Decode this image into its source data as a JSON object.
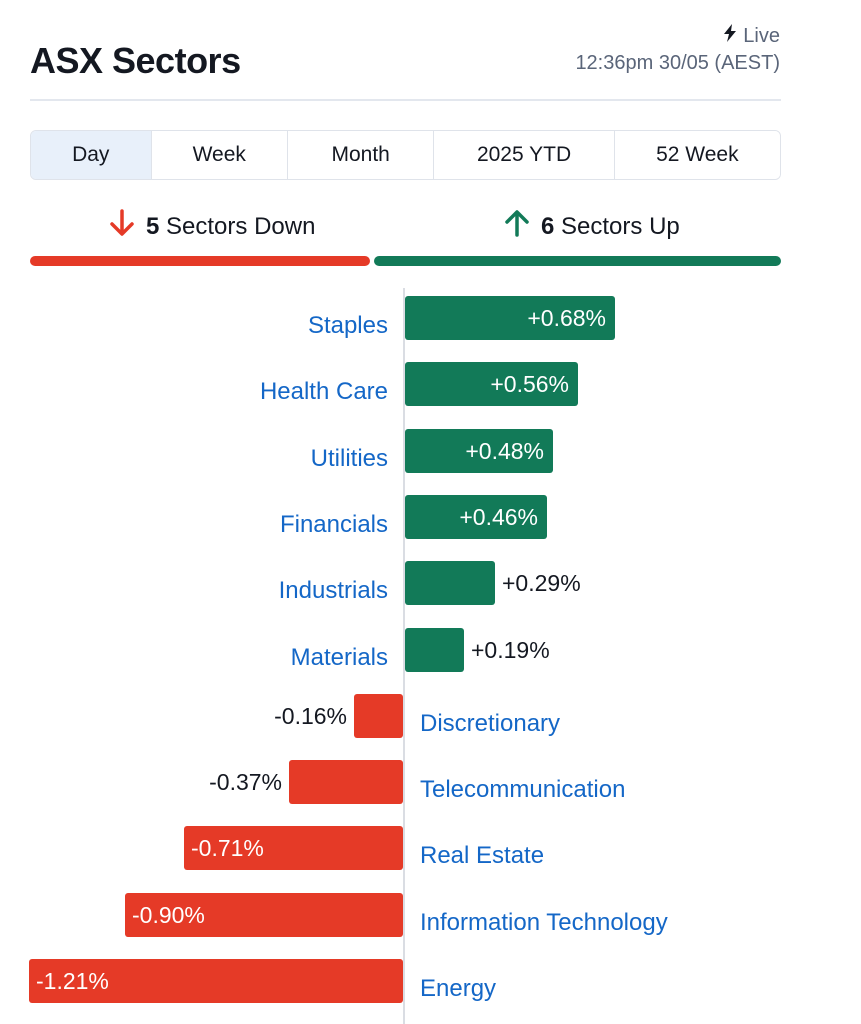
{
  "header": {
    "title": "ASX Sectors",
    "live_label": "Live",
    "timestamp": "12:36pm 30/05 (AEST)"
  },
  "tabs": [
    {
      "label": "Day",
      "active": true
    },
    {
      "label": "Week",
      "active": false
    },
    {
      "label": "Month",
      "active": false
    },
    {
      "label": "2025 YTD",
      "active": false
    },
    {
      "label": "52 Week",
      "active": false
    }
  ],
  "summary": {
    "down_count": "5",
    "down_label": "Sectors Down",
    "up_count": "6",
    "up_label": "Sectors Up"
  },
  "colors": {
    "up": "#127a58",
    "down": "#e53a27",
    "link": "#1467c7",
    "active_tab": "#e8f0fa"
  },
  "icons": {
    "live": "lightning-bolt-icon",
    "down": "arrow-down-icon",
    "up": "arrow-up-icon"
  },
  "chart_data": {
    "type": "bar",
    "orientation": "horizontal",
    "unit": "%",
    "categories": [
      "Staples",
      "Health Care",
      "Utilities",
      "Financials",
      "Industrials",
      "Materials",
      "Discretionary",
      "Telecommunication",
      "Real Estate",
      "Information Technology",
      "Energy"
    ],
    "values": [
      0.68,
      0.56,
      0.48,
      0.46,
      0.29,
      0.19,
      -0.16,
      -0.37,
      -0.71,
      -0.9,
      -1.21
    ],
    "labels": [
      "+0.68%",
      "+0.56%",
      "+0.48%",
      "+0.46%",
      "+0.29%",
      "+0.19%",
      "-0.16%",
      "-0.37%",
      "-0.71%",
      "-0.90%",
      "-1.21%"
    ]
  }
}
